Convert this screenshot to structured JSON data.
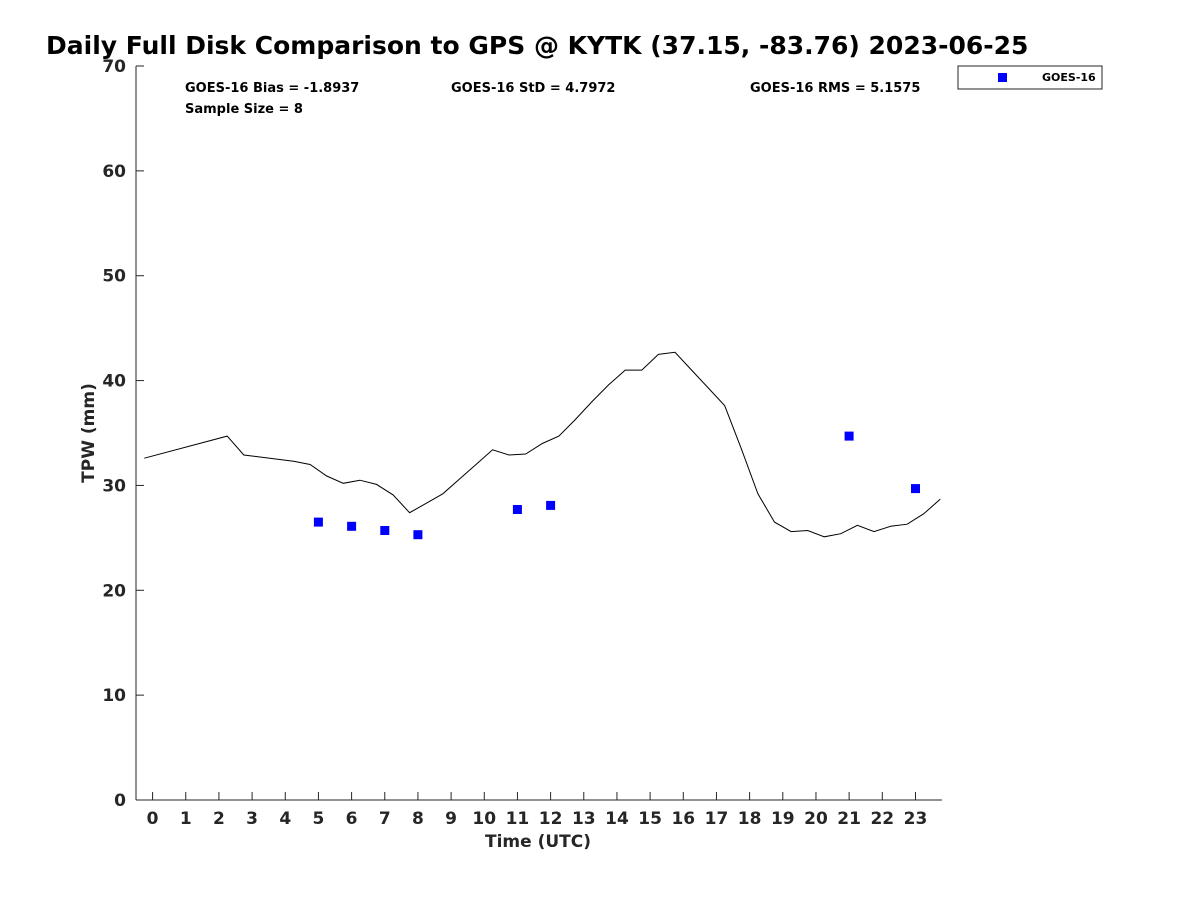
{
  "chart_data": {
    "type": "scatter",
    "title": "Daily Full Disk Comparison to GPS @ KYTK (37.15, -83.76) 2023-06-25",
    "xlabel": "Time (UTC)",
    "ylabel": "TPW (mm)",
    "xlim": [
      -0.5,
      23.8
    ],
    "ylim": [
      0,
      70
    ],
    "xticks": [
      0,
      1,
      2,
      3,
      4,
      5,
      6,
      7,
      8,
      9,
      10,
      11,
      12,
      13,
      14,
      15,
      16,
      17,
      18,
      19,
      20,
      21,
      22,
      23
    ],
    "yticks": [
      0,
      10,
      20,
      30,
      40,
      50,
      60,
      70
    ],
    "grid": false,
    "legend_position": "top-right",
    "stats": {
      "bias": "GOES-16 Bias = -1.8937",
      "std": "GOES-16 StD = 4.7972",
      "rms": "GOES-16 RMS = 5.1575",
      "sample_size": "Sample Size = 8"
    },
    "series": [
      {
        "kind": "line",
        "color": "#000000",
        "x": [
          -0.25,
          2.25,
          2.75,
          4.25,
          4.75,
          5.25,
          5.75,
          6.25,
          6.75,
          7.25,
          7.75,
          8.25,
          8.75,
          9.25,
          9.75,
          10.25,
          10.75,
          11.25,
          11.75,
          12.25,
          12.75,
          13.25,
          13.75,
          14.25,
          14.75,
          15.25,
          15.75,
          16.25,
          16.75,
          17.25,
          17.75,
          18.25,
          18.75,
          19.25,
          19.75,
          20.25,
          20.75,
          21.25,
          21.75,
          22.25,
          22.75,
          23.25,
          23.75
        ],
        "y": [
          32.6,
          34.7,
          32.9,
          32.3,
          32.0,
          30.9,
          30.2,
          30.5,
          30.1,
          29.1,
          27.4,
          28.3,
          29.2,
          30.6,
          32.0,
          33.4,
          32.9,
          33.0,
          34.0,
          34.7,
          36.3,
          38.0,
          39.6,
          41.0,
          41.0,
          42.5,
          42.7,
          41.0,
          39.3,
          37.6,
          33.5,
          29.2,
          26.5,
          25.6,
          25.7,
          25.1,
          25.4,
          26.2,
          25.6,
          26.1,
          26.3,
          27.3,
          28.7
        ]
      },
      {
        "name": "GOES-16",
        "kind": "scatter",
        "marker": "square",
        "color": "#0000ff",
        "x": [
          5,
          6,
          7,
          8,
          11,
          12,
          21,
          23
        ],
        "y": [
          26.5,
          26.1,
          25.7,
          25.3,
          27.7,
          28.1,
          34.7,
          29.7
        ]
      }
    ]
  }
}
